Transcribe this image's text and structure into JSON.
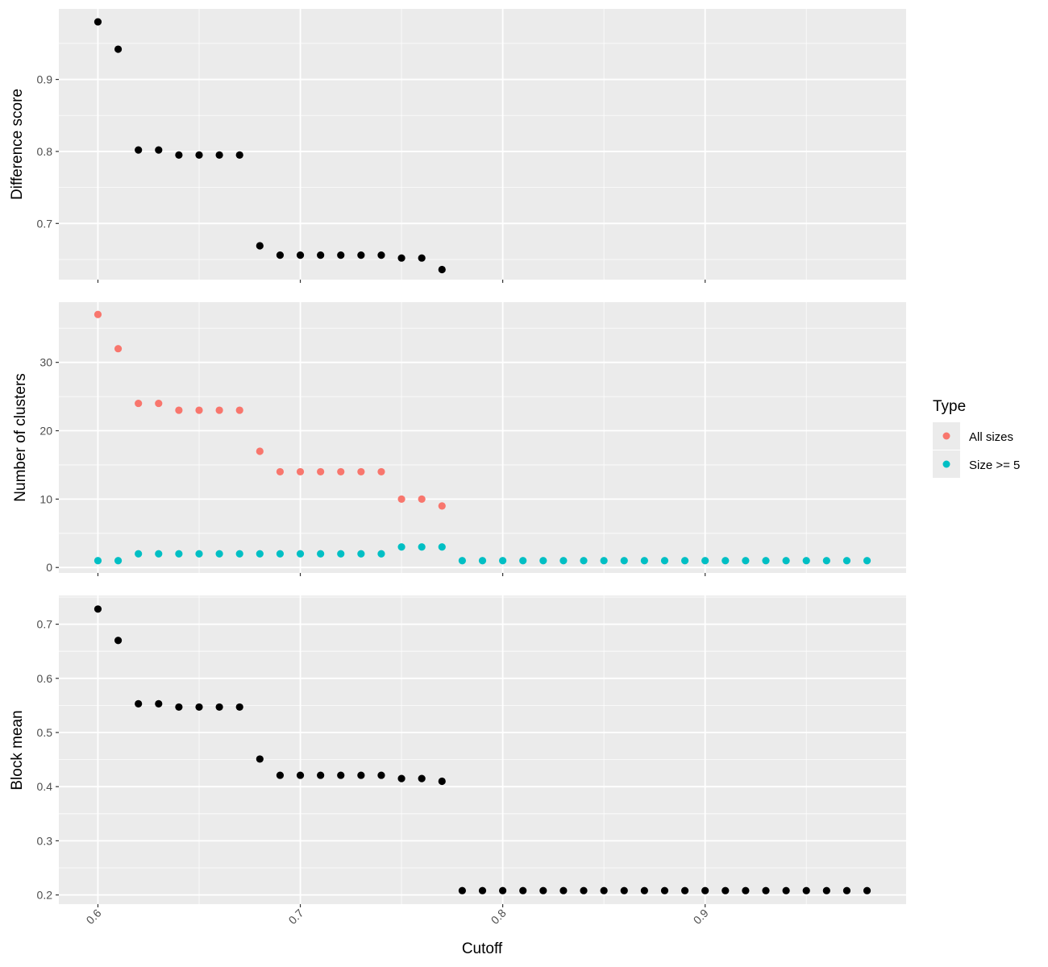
{
  "chart_data": [
    {
      "type": "scatter",
      "panel": "top",
      "ylabel": "Difference score",
      "x_breaks": [
        0.6,
        0.7,
        0.8,
        0.9
      ],
      "y_breaks": [
        0.7,
        0.8,
        0.9
      ],
      "y_tick_labels": [
        "0.7",
        "0.8",
        "0.9"
      ],
      "ylim": [
        0.622,
        0.998
      ],
      "series": [
        {
          "name": "Difference score",
          "color": "#000000",
          "x": [
            0.6,
            0.61,
            0.62,
            0.63,
            0.64,
            0.65,
            0.66,
            0.67,
            0.68,
            0.69,
            0.7,
            0.71,
            0.72,
            0.73,
            0.74,
            0.75,
            0.76,
            0.77
          ],
          "y": [
            0.98,
            0.942,
            0.802,
            0.802,
            0.795,
            0.795,
            0.795,
            0.795,
            0.669,
            0.656,
            0.656,
            0.656,
            0.656,
            0.656,
            0.656,
            0.652,
            0.652,
            0.636
          ]
        }
      ]
    },
    {
      "type": "scatter",
      "panel": "middle",
      "ylabel": "Number of clusters",
      "x_breaks": [
        0.6,
        0.7,
        0.8,
        0.9
      ],
      "y_breaks": [
        0,
        10,
        20,
        30
      ],
      "y_tick_labels": [
        "0",
        "10",
        "20",
        "30"
      ],
      "ylim": [
        -0.8,
        38.8
      ],
      "series": [
        {
          "name": "All sizes",
          "color": "#F8766D",
          "x": [
            0.6,
            0.61,
            0.62,
            0.63,
            0.64,
            0.65,
            0.66,
            0.67,
            0.68,
            0.69,
            0.7,
            0.71,
            0.72,
            0.73,
            0.74,
            0.75,
            0.76,
            0.77
          ],
          "y": [
            37,
            32,
            24,
            24,
            23,
            23,
            23,
            23,
            17,
            14,
            14,
            14,
            14,
            14,
            14,
            10,
            10,
            9
          ]
        },
        {
          "name": "Size >= 5",
          "color": "#00BFC4",
          "x": [
            0.6,
            0.61,
            0.62,
            0.63,
            0.64,
            0.65,
            0.66,
            0.67,
            0.68,
            0.69,
            0.7,
            0.71,
            0.72,
            0.73,
            0.74,
            0.75,
            0.76,
            0.77,
            0.78,
            0.79,
            0.8,
            0.81,
            0.82,
            0.83,
            0.84,
            0.85,
            0.86,
            0.87,
            0.88,
            0.89,
            0.9,
            0.91,
            0.92,
            0.93,
            0.94,
            0.95,
            0.96,
            0.97,
            0.98
          ],
          "y": [
            1,
            1,
            2,
            2,
            2,
            2,
            2,
            2,
            2,
            2,
            2,
            2,
            2,
            2,
            2,
            3,
            3,
            3,
            1,
            1,
            1,
            1,
            1,
            1,
            1,
            1,
            1,
            1,
            1,
            1,
            1,
            1,
            1,
            1,
            1,
            1,
            1,
            1,
            1
          ]
        }
      ]
    },
    {
      "type": "scatter",
      "panel": "bottom",
      "ylabel": "Block mean",
      "xlabel": "Cutoff",
      "x_breaks": [
        0.6,
        0.7,
        0.8,
        0.9
      ],
      "x_tick_labels": [
        "0.6",
        "0.7",
        "0.8",
        "0.9"
      ],
      "y_breaks": [
        0.2,
        0.3,
        0.4,
        0.5,
        0.6,
        0.7
      ],
      "y_tick_labels": [
        "0.2",
        "0.3",
        "0.4",
        "0.5",
        "0.6",
        "0.7"
      ],
      "ylim": [
        0.183,
        0.753
      ],
      "series": [
        {
          "name": "Block mean",
          "color": "#000000",
          "x": [
            0.6,
            0.61,
            0.62,
            0.63,
            0.64,
            0.65,
            0.66,
            0.67,
            0.68,
            0.69,
            0.7,
            0.71,
            0.72,
            0.73,
            0.74,
            0.75,
            0.76,
            0.77,
            0.78,
            0.79,
            0.8,
            0.81,
            0.82,
            0.83,
            0.84,
            0.85,
            0.86,
            0.87,
            0.88,
            0.89,
            0.9,
            0.91,
            0.92,
            0.93,
            0.94,
            0.95,
            0.96,
            0.97,
            0.98
          ],
          "y": [
            0.728,
            0.67,
            0.553,
            0.553,
            0.547,
            0.547,
            0.547,
            0.547,
            0.451,
            0.421,
            0.421,
            0.421,
            0.421,
            0.421,
            0.421,
            0.415,
            0.415,
            0.41,
            0.208,
            0.208,
            0.208,
            0.208,
            0.208,
            0.208,
            0.208,
            0.208,
            0.208,
            0.208,
            0.208,
            0.208,
            0.208,
            0.208,
            0.208,
            0.208,
            0.208,
            0.208,
            0.208,
            0.208,
            0.208
          ]
        }
      ]
    }
  ],
  "shared_x": {
    "xlim": [
      0.5807,
      0.9993
    ]
  },
  "legend": {
    "title": "Type",
    "position": "right",
    "items": [
      {
        "label": "All sizes",
        "color": "#F8766D"
      },
      {
        "label": "Size >= 5",
        "color": "#00BFC4"
      }
    ]
  },
  "colors": {
    "panel_background": "#EBEBEB",
    "grid_major": "#FFFFFF",
    "tick_text": "#4D4D4D",
    "tick_mark": "#333333"
  }
}
